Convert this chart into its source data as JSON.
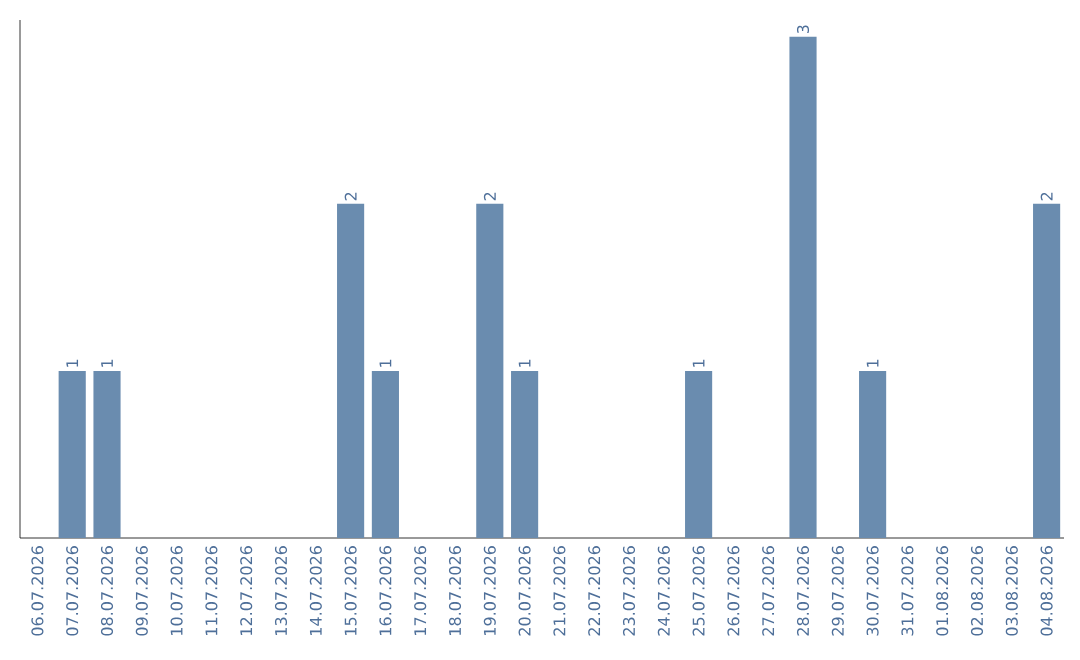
{
  "chart_data": {
    "type": "bar",
    "categories": [
      "06.07.2026",
      "07.07.2026",
      "08.07.2026",
      "09.07.2026",
      "10.07.2026",
      "11.07.2026",
      "12.07.2026",
      "13.07.2026",
      "14.07.2026",
      "15.07.2026",
      "16.07.2026",
      "17.07.2026",
      "18.07.2026",
      "19.07.2026",
      "20.07.2026",
      "21.07.2026",
      "22.07.2026",
      "23.07.2026",
      "24.07.2026",
      "25.07.2026",
      "26.07.2026",
      "27.07.2026",
      "28.07.2026",
      "29.07.2026",
      "30.07.2026",
      "31.07.2026",
      "01.08.2026",
      "02.08.2026",
      "03.08.2026",
      "04.08.2026"
    ],
    "values": [
      0,
      1,
      1,
      0,
      0,
      0,
      0,
      0,
      0,
      2,
      1,
      0,
      0,
      2,
      1,
      0,
      0,
      0,
      0,
      1,
      0,
      0,
      3,
      0,
      1,
      0,
      0,
      0,
      0,
      2
    ],
    "value_labels": [
      null,
      "1",
      "1",
      null,
      null,
      null,
      null,
      null,
      null,
      "2",
      "1",
      null,
      null,
      "2",
      "1",
      null,
      null,
      null,
      null,
      "1",
      null,
      null,
      "3",
      null,
      "1",
      null,
      null,
      null,
      null,
      "2"
    ],
    "color": "#6a8caf",
    "ylim": [
      0,
      3.1
    ],
    "tick_labels": "x"
  }
}
